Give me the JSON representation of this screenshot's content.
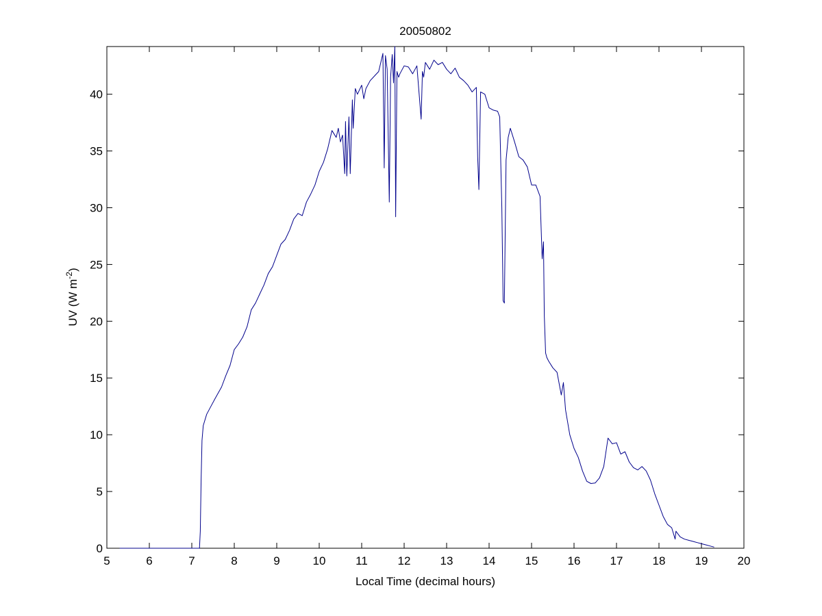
{
  "chart_data": {
    "type": "line",
    "title": "20050802",
    "xlabel": "Local Time (decimal hours)",
    "ylabel": "UV (W m",
    "ylabel_superscript": "-2",
    "ylabel_close": ")",
    "xlim": [
      5,
      20
    ],
    "ylim": [
      0,
      44.2
    ],
    "xticks": [
      5,
      6,
      7,
      8,
      9,
      10,
      11,
      12,
      13,
      14,
      15,
      16,
      17,
      18,
      19,
      20
    ],
    "yticks": [
      0,
      5,
      10,
      15,
      20,
      25,
      30,
      35,
      40
    ],
    "grid": false,
    "legend": "none",
    "line_color": "#00008b",
    "series": [
      {
        "x": [
          5.3,
          7.0,
          7.18,
          7.2,
          7.22,
          7.24,
          7.27,
          7.35,
          7.45,
          7.55,
          7.7,
          7.8,
          7.9,
          8.0,
          8.1,
          8.2,
          8.3,
          8.4,
          8.5,
          8.6,
          8.7,
          8.8,
          8.9,
          9.0,
          9.1,
          9.2,
          9.3,
          9.4,
          9.5,
          9.6,
          9.7,
          9.8,
          9.9,
          10.0,
          10.1,
          10.2,
          10.3,
          10.4,
          10.45,
          10.5,
          10.55,
          10.6,
          10.62,
          10.65,
          10.7,
          10.73,
          10.78,
          10.8,
          10.85,
          10.9,
          11.0,
          11.05,
          11.1,
          11.2,
          11.3,
          11.4,
          11.5,
          11.53,
          11.56,
          11.6,
          11.65,
          11.68,
          11.72,
          11.75,
          11.78,
          11.8,
          11.83,
          11.87,
          11.9,
          12.0,
          12.1,
          12.2,
          12.3,
          12.4,
          12.43,
          12.46,
          12.5,
          12.6,
          12.7,
          12.8,
          12.9,
          13.0,
          13.1,
          13.2,
          13.3,
          13.4,
          13.5,
          13.6,
          13.7,
          13.73,
          13.76,
          13.8,
          13.9,
          14.0,
          14.1,
          14.2,
          14.25,
          14.3,
          14.33,
          14.36,
          14.4,
          14.45,
          14.5,
          14.6,
          14.7,
          14.8,
          14.9,
          15.0,
          15.1,
          15.2,
          15.25,
          15.28,
          15.3,
          15.33,
          15.36,
          15.4,
          15.5,
          15.6,
          15.7,
          15.75,
          15.8,
          15.9,
          16.0,
          16.1,
          16.2,
          16.3,
          16.4,
          16.5,
          16.6,
          16.7,
          16.8,
          16.9,
          17.0,
          17.1,
          17.2,
          17.3,
          17.4,
          17.5,
          17.6,
          17.7,
          17.8,
          17.9,
          18.0,
          18.1,
          18.2,
          18.3,
          18.38,
          18.4,
          18.42,
          18.5,
          18.6,
          18.7,
          18.8,
          18.9,
          19.0,
          19.1,
          19.2,
          19.3
        ],
        "y": [
          0,
          0,
          0,
          1.5,
          6,
          9.5,
          10.8,
          11.8,
          12.5,
          13.2,
          14.2,
          15.2,
          16.1,
          17.5,
          18.0,
          18.6,
          19.5,
          21.0,
          21.6,
          22.4,
          23.2,
          24.2,
          24.8,
          25.8,
          26.8,
          27.2,
          28.0,
          29.0,
          29.5,
          29.3,
          30.5,
          31.2,
          32.0,
          33.2,
          34.0,
          35.2,
          36.8,
          36.2,
          37.0,
          35.8,
          36.4,
          33.0,
          37.6,
          32.8,
          38.0,
          33.0,
          39.5,
          37.0,
          40.5,
          40.0,
          40.8,
          39.6,
          40.5,
          41.2,
          41.6,
          42.0,
          43.6,
          33.5,
          43.4,
          42.2,
          30.5,
          41.5,
          43.5,
          41.0,
          44.2,
          29.2,
          42.0,
          41.5,
          41.8,
          42.5,
          42.4,
          41.8,
          42.5,
          37.8,
          42.0,
          41.5,
          42.8,
          42.2,
          43.0,
          42.6,
          42.8,
          42.2,
          41.8,
          42.3,
          41.5,
          41.2,
          40.8,
          40.2,
          40.6,
          34.5,
          31.6,
          40.2,
          40.0,
          38.8,
          38.6,
          38.5,
          38.0,
          30.0,
          21.8,
          21.6,
          34.2,
          36.2,
          37.0,
          35.8,
          34.5,
          34.2,
          33.6,
          32.0,
          32.0,
          31.0,
          25.5,
          27.0,
          20.5,
          17.2,
          16.8,
          16.5,
          15.9,
          15.5,
          13.5,
          14.6,
          12.2,
          10.0,
          8.8,
          8.0,
          6.8,
          5.9,
          5.7,
          5.75,
          6.2,
          7.2,
          9.7,
          9.2,
          9.3,
          8.3,
          8.5,
          7.6,
          7.1,
          6.9,
          7.2,
          6.8,
          6.0,
          4.8,
          3.8,
          2.8,
          2.1,
          1.8,
          0.8,
          1.5,
          1.4,
          1.0,
          0.8,
          0.7,
          0.6,
          0.5,
          0.4,
          0.3,
          0.2,
          0.1
        ]
      }
    ]
  }
}
